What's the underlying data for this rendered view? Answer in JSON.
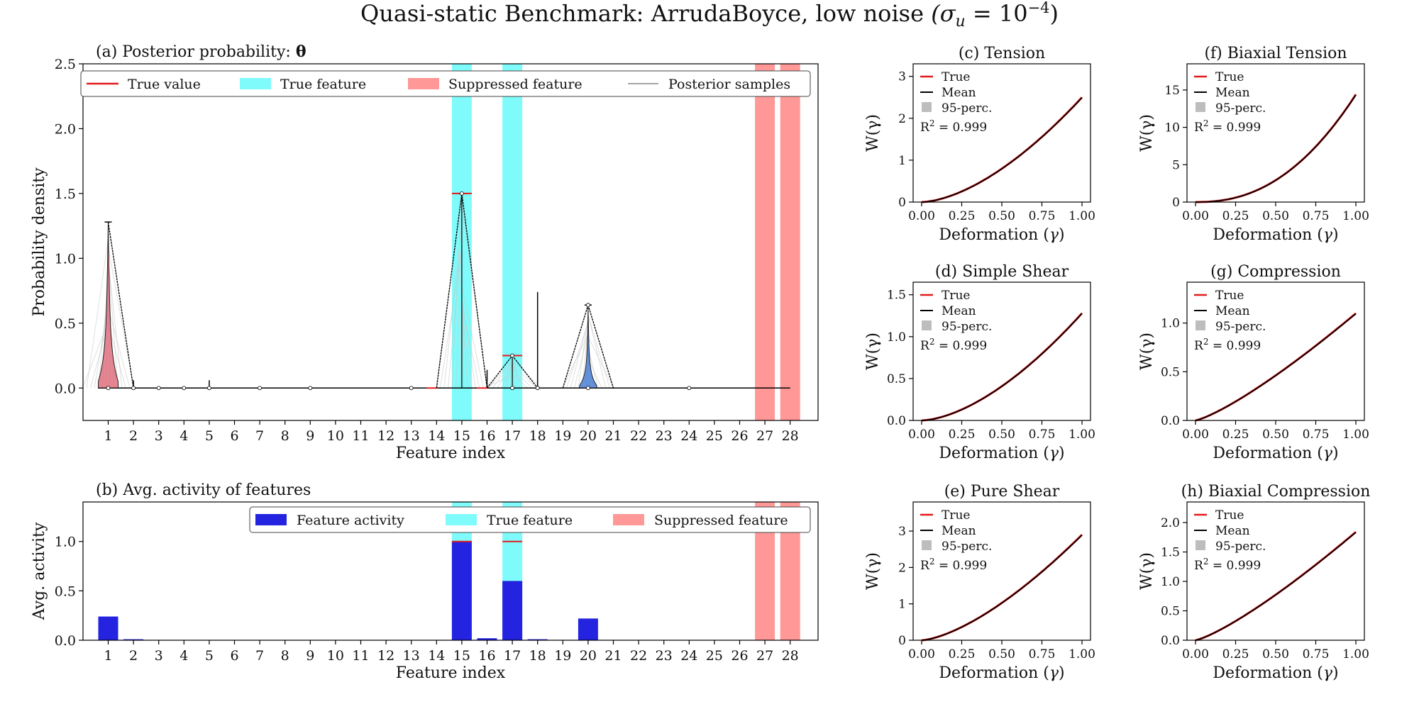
{
  "figure": {
    "title": "Quasi-static Benchmark: ArrudaBoyce, low noise (σ_u = 10⁻⁴)"
  },
  "colors": {
    "true_value": "#e41a1c",
    "true_feature": "#7ffbfb",
    "suppressed_feature": "#ff9896",
    "activity": "#2323e0",
    "posterior": "#888888",
    "violin_red": "#e07080",
    "violin_blue": "#4a7fd4",
    "mean": "#000000",
    "perc": "#bdbdbd"
  },
  "chart_data": [
    {
      "id": "a",
      "type": "violin",
      "title": "(a) Posterior  probability: θ",
      "xlabel": "Feature index",
      "ylabel": "Probability density",
      "x_ticks": [
        "1",
        "2",
        "3",
        "4",
        "5",
        "6",
        "7",
        "8",
        "9",
        "10",
        "11",
        "12",
        "13",
        "14",
        "15",
        "16",
        "17",
        "18",
        "19",
        "20",
        "21",
        "22",
        "23",
        "24",
        "25",
        "26",
        "27",
        "28"
      ],
      "y_ticks": [
        "0.0",
        "0.5",
        "1.0",
        "1.5",
        "2.0",
        "2.5"
      ],
      "ylim": [
        -0.25,
        2.5
      ],
      "true_features": [
        15,
        17
      ],
      "suppressed_features": [
        27,
        28
      ],
      "true_values": [
        {
          "feature": 15,
          "value": 1.5
        },
        {
          "feature": 17,
          "value": 0.25
        }
      ],
      "violins": [
        {
          "feature": 1,
          "max_density_value": 1.28,
          "color": "red"
        },
        {
          "feature": 15,
          "max_density_value": 1.5,
          "color": "white"
        },
        {
          "feature": 17,
          "max_density_value": 0.25,
          "color": "white"
        },
        {
          "feature": 20,
          "max_density_value": 0.64,
          "color": "blue"
        }
      ],
      "legend": [
        "True value",
        "True feature",
        "Suppressed feature",
        "Posterior samples"
      ],
      "legend_position": "top"
    },
    {
      "id": "b",
      "type": "bar",
      "title": "(b) Avg. activity of features",
      "xlabel": "Feature index",
      "ylabel": "Avg. activity",
      "categories": [
        "1",
        "2",
        "3",
        "4",
        "5",
        "6",
        "7",
        "8",
        "9",
        "10",
        "11",
        "12",
        "13",
        "14",
        "15",
        "16",
        "17",
        "18",
        "19",
        "20",
        "21",
        "22",
        "23",
        "24",
        "25",
        "26",
        "27",
        "28"
      ],
      "values": [
        0.24,
        0.01,
        0,
        0,
        0,
        0,
        0,
        0,
        0,
        0,
        0,
        0,
        0,
        0,
        1.0,
        0.02,
        0.6,
        0.01,
        0,
        0.22,
        0,
        0,
        0,
        0,
        0,
        0,
        0,
        0
      ],
      "y_ticks": [
        "0.0",
        "0.5",
        "1.0"
      ],
      "ylim": [
        0,
        1.4
      ],
      "true_features": [
        15,
        17
      ],
      "suppressed_features": [
        27,
        28
      ],
      "legend": [
        "Feature activity",
        "True feature",
        "Suppressed feature"
      ],
      "legend_position": "top-right"
    },
    {
      "id": "c",
      "type": "line",
      "title": "(c) Tension",
      "xlabel": "Deformation (γ)",
      "ylabel": "W(γ)",
      "xlim": [
        0,
        1
      ],
      "ylim": [
        0,
        3.3
      ],
      "y_max_value": 2.5,
      "exponent": 1.65,
      "x_ticks": [
        "0.00",
        "0.25",
        "0.50",
        "0.75",
        "1.00"
      ],
      "y_ticks": [
        "0",
        "1",
        "2",
        "3"
      ],
      "y_tick_values": [
        0,
        1,
        2,
        3
      ],
      "legend": [
        "True",
        "Mean",
        "95-perc."
      ],
      "r2": "R² = 0.999"
    },
    {
      "id": "f",
      "type": "line",
      "title": "(f) Biaxial Tension",
      "xlabel": "Deformation (γ)",
      "ylabel": "W(γ)",
      "xlim": [
        0,
        1
      ],
      "ylim": [
        0,
        18.5
      ],
      "y_max_value": 14.4,
      "exponent": 2.3,
      "x_ticks": [
        "0.00",
        "0.25",
        "0.50",
        "0.75",
        "1.00"
      ],
      "y_ticks": [
        "0",
        "5",
        "10",
        "15"
      ],
      "y_tick_values": [
        0,
        5,
        10,
        15
      ],
      "legend": [
        "True",
        "Mean",
        "95-perc."
      ],
      "r2": "R² = 0.999"
    },
    {
      "id": "d",
      "type": "line",
      "title": "(d) Simple Shear",
      "xlabel": "Deformation (γ)",
      "ylabel": "W(γ)",
      "xlim": [
        0,
        1
      ],
      "ylim": [
        0,
        1.65
      ],
      "y_max_value": 1.28,
      "exponent": 1.65,
      "x_ticks": [
        "0.00",
        "0.25",
        "0.50",
        "0.75",
        "1.00"
      ],
      "y_ticks": [
        "0.0",
        "0.5",
        "1.0",
        "1.5"
      ],
      "y_tick_values": [
        0,
        0.5,
        1.0,
        1.5
      ],
      "legend": [
        "True",
        "Mean",
        "95-perc."
      ],
      "r2": "R² = 0.999"
    },
    {
      "id": "g",
      "type": "line",
      "title": "(g) Compression",
      "xlabel": "Deformation (γ)",
      "ylabel": "W(γ)",
      "xlim": [
        0,
        1
      ],
      "ylim": [
        0,
        1.42
      ],
      "y_max_value": 1.1,
      "exponent": 1.25,
      "x_ticks": [
        "0.00",
        "0.25",
        "0.50",
        "0.75",
        "1.00"
      ],
      "y_ticks": [
        "0.0",
        "0.5",
        "1.0"
      ],
      "y_tick_values": [
        0,
        0.5,
        1.0
      ],
      "legend": [
        "True",
        "Mean",
        "95-perc."
      ],
      "r2": "R² = 0.999"
    },
    {
      "id": "e",
      "type": "line",
      "title": "(e) Pure Shear",
      "xlabel": "Deformation (γ)",
      "ylabel": "W(γ)",
      "xlim": [
        0,
        1
      ],
      "ylim": [
        0,
        3.8
      ],
      "y_max_value": 2.9,
      "exponent": 1.5,
      "x_ticks": [
        "0.00",
        "0.25",
        "0.50",
        "0.75",
        "1.00"
      ],
      "y_ticks": [
        "0",
        "1",
        "2",
        "3"
      ],
      "y_tick_values": [
        0,
        1,
        2,
        3
      ],
      "legend": [
        "True",
        "Mean",
        "95-perc."
      ],
      "r2": "R² = 0.999"
    },
    {
      "id": "h",
      "type": "line",
      "title": "(h) Biaxial Compression",
      "xlabel": "Deformation (γ)",
      "ylabel": "W(γ)",
      "xlim": [
        0,
        1
      ],
      "ylim": [
        0,
        2.35
      ],
      "y_max_value": 1.84,
      "exponent": 1.25,
      "x_ticks": [
        "0.00",
        "0.25",
        "0.50",
        "0.75",
        "1.00"
      ],
      "y_ticks": [
        "0.0",
        "0.5",
        "1.0",
        "1.5",
        "2.0"
      ],
      "y_tick_values": [
        0,
        0.5,
        1.0,
        1.5,
        2.0
      ],
      "legend": [
        "True",
        "Mean",
        "95-perc."
      ],
      "r2": "R² = 0.999"
    }
  ]
}
